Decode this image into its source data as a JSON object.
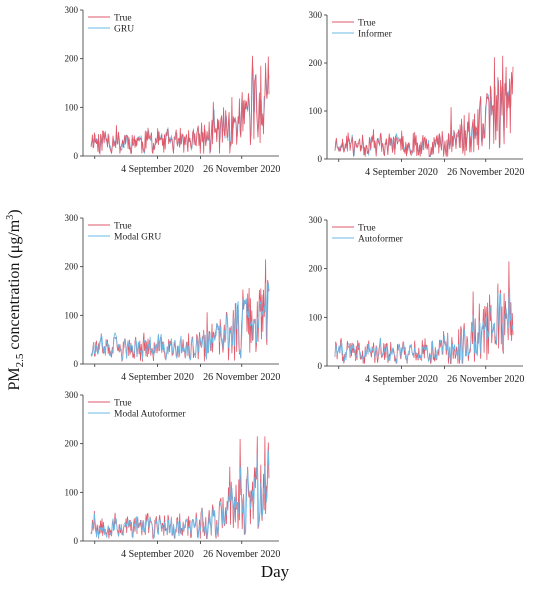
{
  "figure": {
    "ylabel_main": "PM",
    "ylabel_sub": "2.5",
    "ylabel_rest": " concentration (μg/m",
    "ylabel_sup": "3",
    "ylabel_close": ")",
    "xlabel": "Day"
  },
  "colors": {
    "true": "#e0596a",
    "pred": "#6ab8e6"
  },
  "chart_data": [
    {
      "type": "line",
      "ylim": [
        0,
        300
      ],
      "yticks": [
        0,
        100,
        200,
        300
      ],
      "xticks": [
        {
          "label": "4 September 2020",
          "x": 0.38
        },
        {
          "label": "26 November 2020",
          "x": 0.81
        }
      ],
      "series": [
        {
          "name": "True",
          "role": "true"
        },
        {
          "name": "GRU",
          "role": "pred"
        }
      ],
      "legend": "top-left",
      "front": "true",
      "seed": 11
    },
    {
      "type": "line",
      "ylim": [
        0,
        300
      ],
      "yticks": [
        0,
        100,
        200,
        300
      ],
      "xticks": [
        {
          "label": "4 September 2020",
          "x": 0.38
        },
        {
          "label": "26 November 2020",
          "x": 0.81
        }
      ],
      "series": [
        {
          "name": "True",
          "role": "true"
        },
        {
          "name": "Informer",
          "role": "pred"
        }
      ],
      "legend": "top-left",
      "front": "true",
      "seed": 23
    },
    {
      "type": "line",
      "ylim": [
        0,
        300
      ],
      "yticks": [
        0,
        100,
        200,
        300
      ],
      "xticks": [
        {
          "label": "4 September 2020",
          "x": 0.38
        },
        {
          "label": "26 November 2020",
          "x": 0.81
        }
      ],
      "series": [
        {
          "name": "True",
          "role": "true"
        },
        {
          "name": "Modal GRU",
          "role": "pred"
        }
      ],
      "legend": "top-left",
      "front": "pred",
      "seed": 37
    },
    {
      "type": "line",
      "ylim": [
        0,
        300
      ],
      "yticks": [
        0,
        100,
        200,
        300
      ],
      "xticks": [
        {
          "label": "4 September 2020",
          "x": 0.38
        },
        {
          "label": "26 November 2020",
          "x": 0.81
        }
      ],
      "series": [
        {
          "name": "True",
          "role": "true"
        },
        {
          "name": "Autoformer",
          "role": "pred"
        }
      ],
      "legend": "top-left",
      "front": "pred",
      "seed": 41
    },
    {
      "type": "line",
      "ylim": [
        0,
        300
      ],
      "yticks": [
        0,
        100,
        200,
        300
      ],
      "xticks": [
        {
          "label": "4 September 2020",
          "x": 0.38
        },
        {
          "label": "26 November 2020",
          "x": 0.81
        }
      ],
      "series": [
        {
          "name": "True",
          "role": "true"
        },
        {
          "name": "Modal Autoformer",
          "role": "pred"
        }
      ],
      "legend": "top-left",
      "front": "pred",
      "seed": 53
    }
  ]
}
